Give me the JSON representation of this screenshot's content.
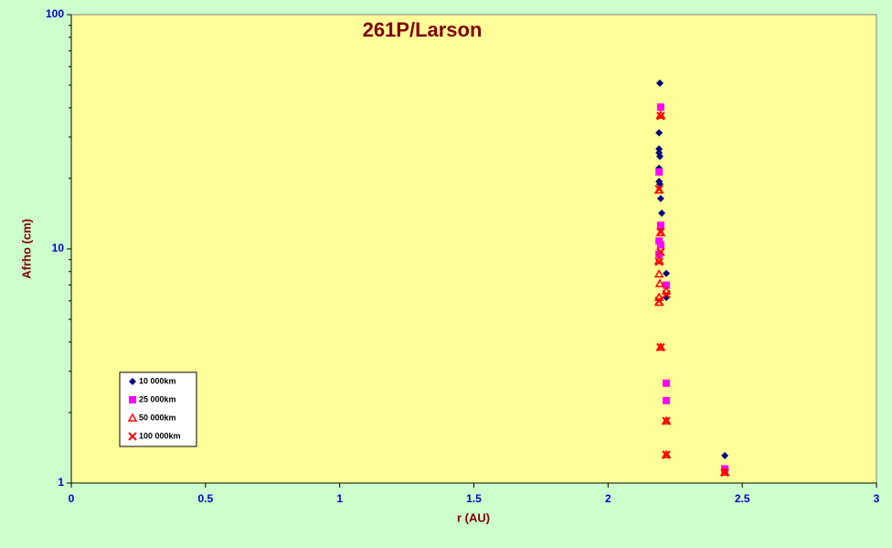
{
  "chart_data": {
    "type": "scatter",
    "title": "261P/Larson",
    "x_label": "r (AU)",
    "y_label": "Afrho (cm)",
    "xlim": [
      0,
      3
    ],
    "xticks": [
      0,
      0.5,
      1,
      1.5,
      2,
      2.5,
      3
    ],
    "ylim": [
      1,
      100
    ],
    "yticks": [
      1,
      10,
      100
    ],
    "y_scale": "log",
    "grid": false,
    "legend": "lower left",
    "series": [
      {
        "name": "10 000km",
        "color": "#000080",
        "marker": "diamond",
        "x": [
          2.193,
          2.19,
          2.19,
          2.19,
          2.193,
          2.19,
          2.19,
          2.193,
          2.196,
          2.2,
          2.196,
          2.217,
          2.217,
          2.435
        ],
        "values": [
          51,
          31.3,
          26.7,
          25.7,
          24.8,
          22.1,
          19.4,
          18.9,
          16.4,
          14.2,
          12.2,
          7.85,
          6.2,
          1.31
        ]
      },
      {
        "name": "25 000km",
        "color": "#ff00ff",
        "marker": "square",
        "x": [
          2.196,
          2.19,
          2.196,
          2.19,
          2.196,
          2.19,
          2.217,
          2.217,
          2.217,
          2.435
        ],
        "values": [
          40.3,
          21.3,
          12.6,
          10.8,
          10.4,
          9.5,
          7.0,
          2.67,
          2.25,
          1.15
        ]
      },
      {
        "name": "50 000km",
        "color": "#ff0000",
        "marker": "triangle",
        "x": [
          2.196,
          2.19,
          2.196,
          2.19,
          2.19,
          2.193,
          2.217,
          2.19,
          2.19,
          2.196,
          2.217,
          2.217,
          2.435
        ],
        "values": [
          37.2,
          17.8,
          11.7,
          8.9,
          7.8,
          7.1,
          6.6,
          6.2,
          5.9,
          3.8,
          1.84,
          1.32,
          1.11
        ]
      },
      {
        "name": "100 000km",
        "color": "#ff0000",
        "marker": "cross",
        "x": [
          2.196,
          2.19,
          2.196,
          2.196,
          2.19,
          2.217,
          2.19,
          2.196,
          2.217,
          2.217,
          2.435
        ],
        "values": [
          36.9,
          18,
          11.8,
          9.7,
          8.8,
          6.4,
          6.0,
          3.8,
          1.84,
          1.32,
          1.11
        ]
      }
    ]
  }
}
